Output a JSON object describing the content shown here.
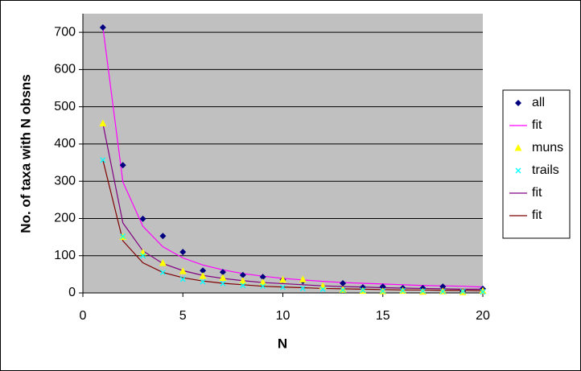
{
  "chart_data": {
    "type": "scatter",
    "x_label": "N",
    "y_label": "No. of taxa with N obsns",
    "x": [
      1,
      2,
      3,
      4,
      5,
      6,
      7,
      8,
      9,
      10,
      11,
      12,
      13,
      14,
      15,
      16,
      17,
      18,
      19,
      20
    ],
    "xlim": [
      0,
      20
    ],
    "xticks": [
      0,
      5,
      10,
      15,
      20
    ],
    "ylim": [
      0,
      750
    ],
    "yticks": [
      0,
      100,
      200,
      300,
      400,
      500,
      600,
      700
    ],
    "grid": true,
    "legend": "right",
    "series": [
      {
        "name": "all",
        "color": "#000080",
        "style": "marker",
        "marker": "diamond",
        "values": [
          713,
          343,
          199,
          153,
          110,
          60,
          56,
          48,
          43,
          35,
          32,
          null,
          26,
          15,
          17,
          13,
          13,
          17,
          4,
          11
        ]
      },
      {
        "name": "fit",
        "color": "#ff00ff",
        "style": "line",
        "values": [
          714,
          298,
          179,
          124,
          94,
          75,
          62,
          52,
          45,
          39,
          35,
          31,
          28,
          26,
          24,
          22,
          20,
          19,
          18,
          16
        ]
      },
      {
        "name": "muns",
        "color": "#ffff00",
        "style": "marker",
        "marker": "triangle",
        "values": [
          455,
          150,
          108,
          80,
          58,
          45,
          40,
          32,
          28,
          35,
          36,
          18,
          8,
          5,
          4,
          5,
          3,
          4,
          2,
          5
        ]
      },
      {
        "name": "trails",
        "color": "#00ffff",
        "style": "marker",
        "marker": "x",
        "values": [
          357,
          152,
          100,
          55,
          37,
          30,
          25,
          20,
          18,
          15,
          12,
          10,
          8,
          7,
          5,
          6,
          5,
          4,
          4,
          3
        ]
      },
      {
        "name": "fit",
        "color": "#800080",
        "style": "line",
        "values": [
          455,
          188,
          113,
          79,
          60,
          47,
          39,
          33,
          28,
          25,
          22,
          19,
          17,
          16,
          14,
          13,
          12,
          11,
          10,
          10
        ]
      },
      {
        "name": "fit",
        "color": "#800000",
        "style": "line",
        "values": [
          357,
          140,
          81,
          55,
          41,
          32,
          26,
          22,
          18,
          16,
          14,
          12,
          11,
          10,
          9,
          8,
          8,
          7,
          7,
          6
        ]
      }
    ]
  }
}
